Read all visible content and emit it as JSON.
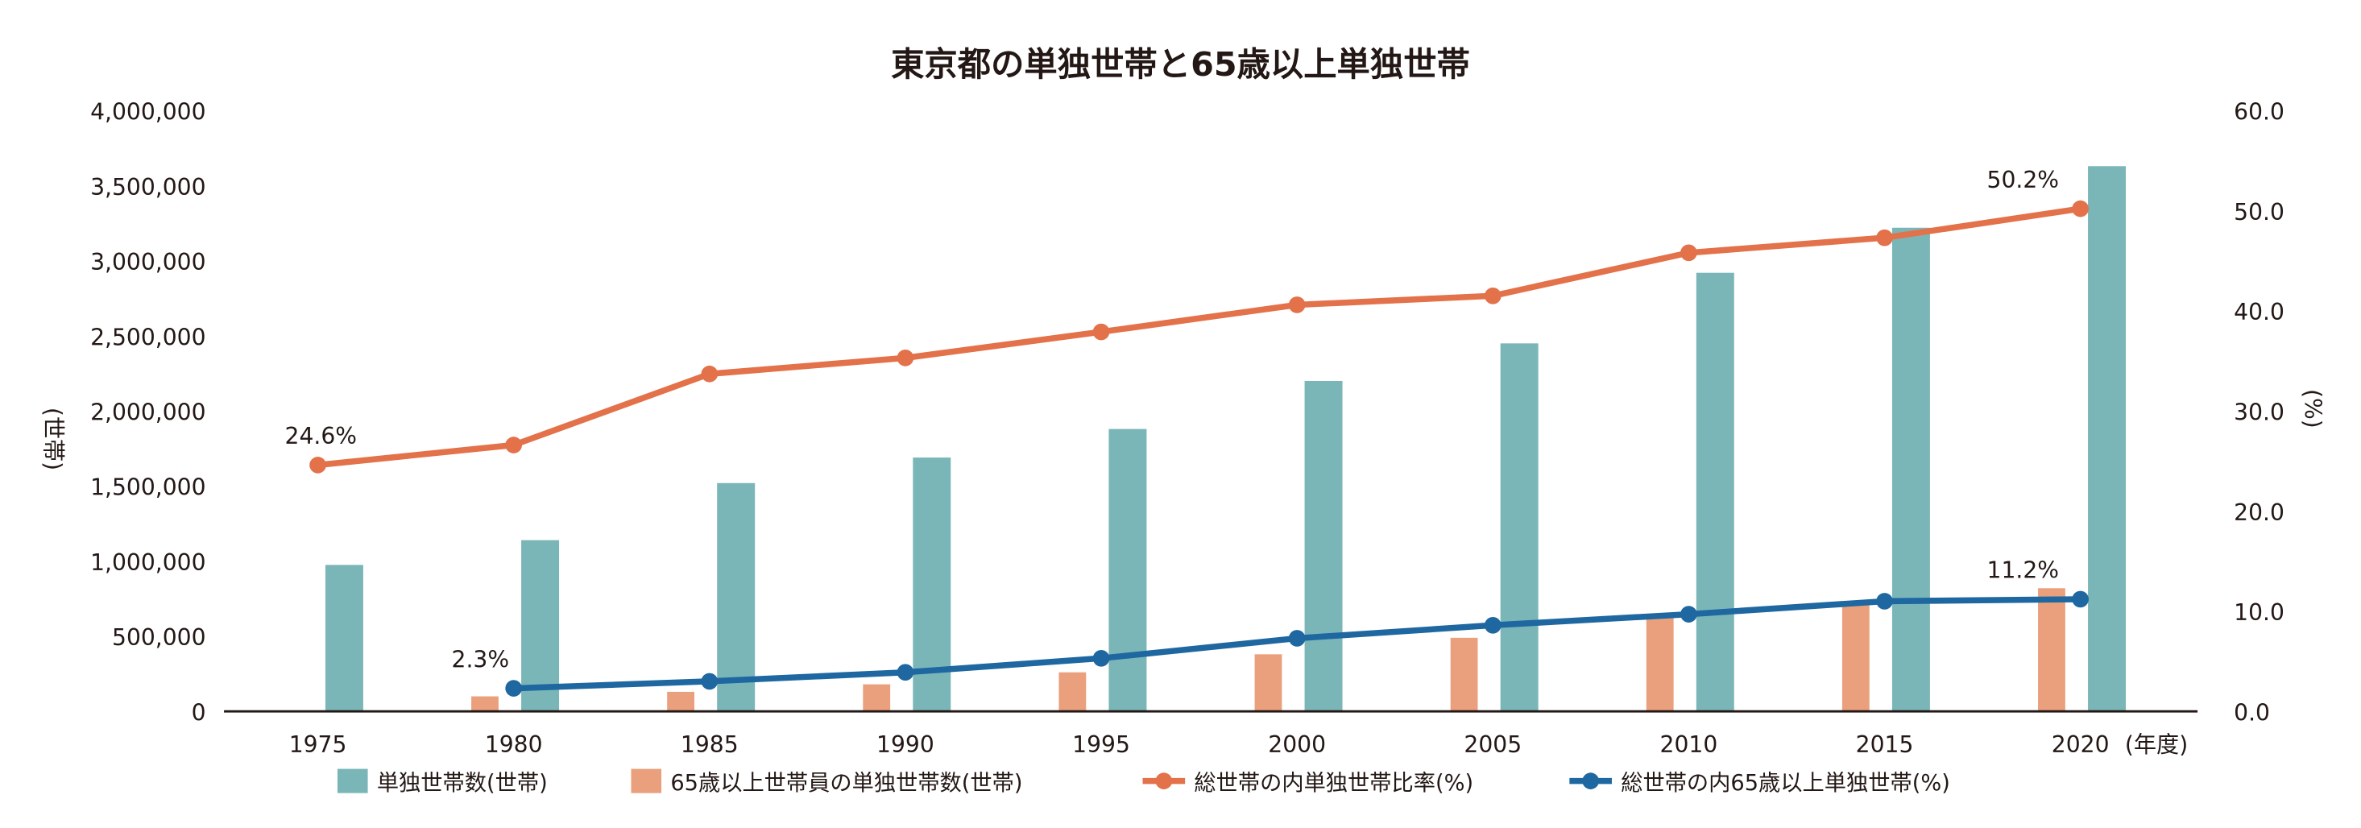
{
  "chart_data": {
    "type": "bar+line",
    "title": "東京都の単独世帯と65歳以上単独世帯",
    "categories": [
      "1975",
      "1980",
      "1985",
      "1990",
      "1995",
      "2000",
      "2005",
      "2010",
      "2015",
      "2020"
    ],
    "x_unit_label": "(年度)",
    "ylabel": "(世帯)",
    "y2label": "(%)",
    "ylim": [
      0,
      4000000
    ],
    "y2lim": [
      0,
      60
    ],
    "yticks": [
      "0",
      "500,000",
      "1,000,000",
      "1,500,000",
      "2,000,000",
      "2,500,000",
      "3,000,000",
      "3,500,000",
      "4,000,000"
    ],
    "y2ticks": [
      "0.0",
      "10.0",
      "20.0",
      "30.0",
      "40.0",
      "50.0",
      "60.0"
    ],
    "grid": false,
    "legend_position": "bottom",
    "series": [
      {
        "name": "単独世帯数(世帯)",
        "kind": "bar",
        "color": "#7ab6b8",
        "values": [
          975000,
          1140000,
          1520000,
          1690000,
          1880000,
          2200000,
          2450000,
          2920000,
          3220000,
          3630000
        ]
      },
      {
        "name": "65歳以上世帯員の単独世帯数(世帯)",
        "kind": "bar",
        "color": "#eaa07c",
        "values": [
          null,
          100000,
          130000,
          180000,
          260000,
          380000,
          490000,
          650000,
          720000,
          820000
        ]
      },
      {
        "name": "総世帯の内単独世帯比率(%)",
        "kind": "line",
        "axis": "right",
        "color": "#e3714a",
        "values": [
          24.6,
          26.6,
          33.7,
          35.3,
          37.9,
          40.6,
          41.5,
          45.8,
          47.3,
          50.2
        ]
      },
      {
        "name": "総世帯の内65歳以上単独世帯(%)",
        "kind": "line",
        "axis": "right",
        "color": "#1e67a0",
        "values": [
          null,
          2.3,
          3.0,
          3.9,
          5.3,
          7.3,
          8.6,
          9.7,
          11.0,
          11.2
        ]
      }
    ],
    "annotations": [
      {
        "series": 2,
        "index": 0,
        "text": "24.6%"
      },
      {
        "series": 2,
        "index": 9,
        "text": "50.2%"
      },
      {
        "series": 3,
        "index": 1,
        "text": "2.3%"
      },
      {
        "series": 3,
        "index": 9,
        "text": "11.2%"
      }
    ]
  }
}
